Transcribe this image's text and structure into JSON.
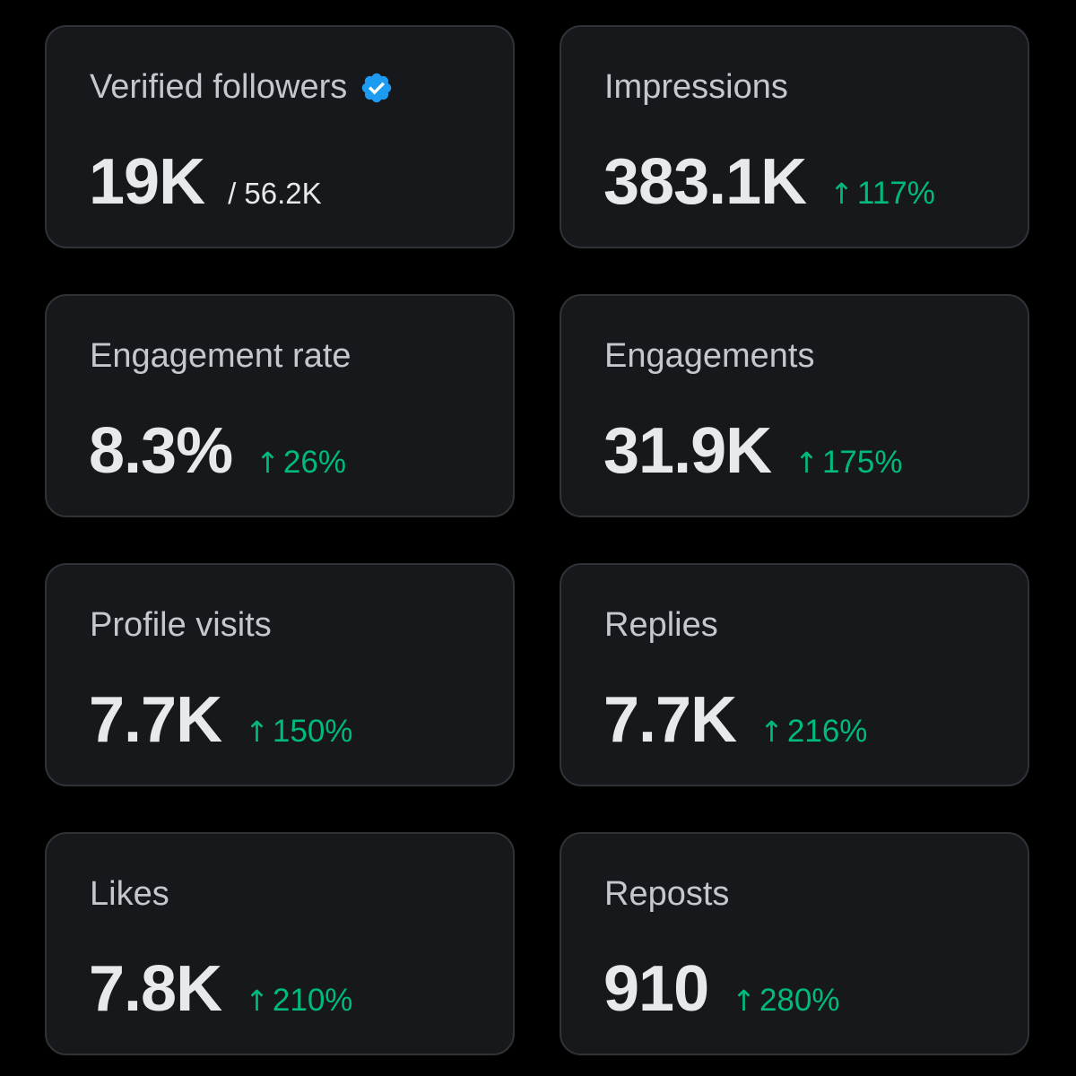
{
  "cards": [
    {
      "label": "Verified followers",
      "value": "19K",
      "secondary": "/ 56.2K",
      "delta": "",
      "icon": "verified-badge-icon",
      "accent": "#1d9bf0"
    },
    {
      "label": "Impressions",
      "value": "383.1K",
      "delta": "117%",
      "arrow": "↑",
      "delta_color": "#00ba7c"
    },
    {
      "label": "Engagement rate",
      "value": "8.3%",
      "delta": "26%",
      "arrow": "↑",
      "delta_color": "#00ba7c"
    },
    {
      "label": "Engagements",
      "value": "31.9K",
      "delta": "175%",
      "arrow": "↑",
      "delta_color": "#00ba7c"
    },
    {
      "label": "Profile visits",
      "value": "7.7K",
      "delta": "150%",
      "arrow": "↑",
      "delta_color": "#00ba7c"
    },
    {
      "label": "Replies",
      "value": "7.7K",
      "delta": "216%",
      "arrow": "↑",
      "delta_color": "#00ba7c"
    },
    {
      "label": "Likes",
      "value": "7.8K",
      "delta": "210%",
      "arrow": "↑",
      "delta_color": "#00ba7c"
    },
    {
      "label": "Reposts",
      "value": "910",
      "delta": "280%",
      "arrow": "↑",
      "delta_color": "#00ba7c"
    }
  ]
}
